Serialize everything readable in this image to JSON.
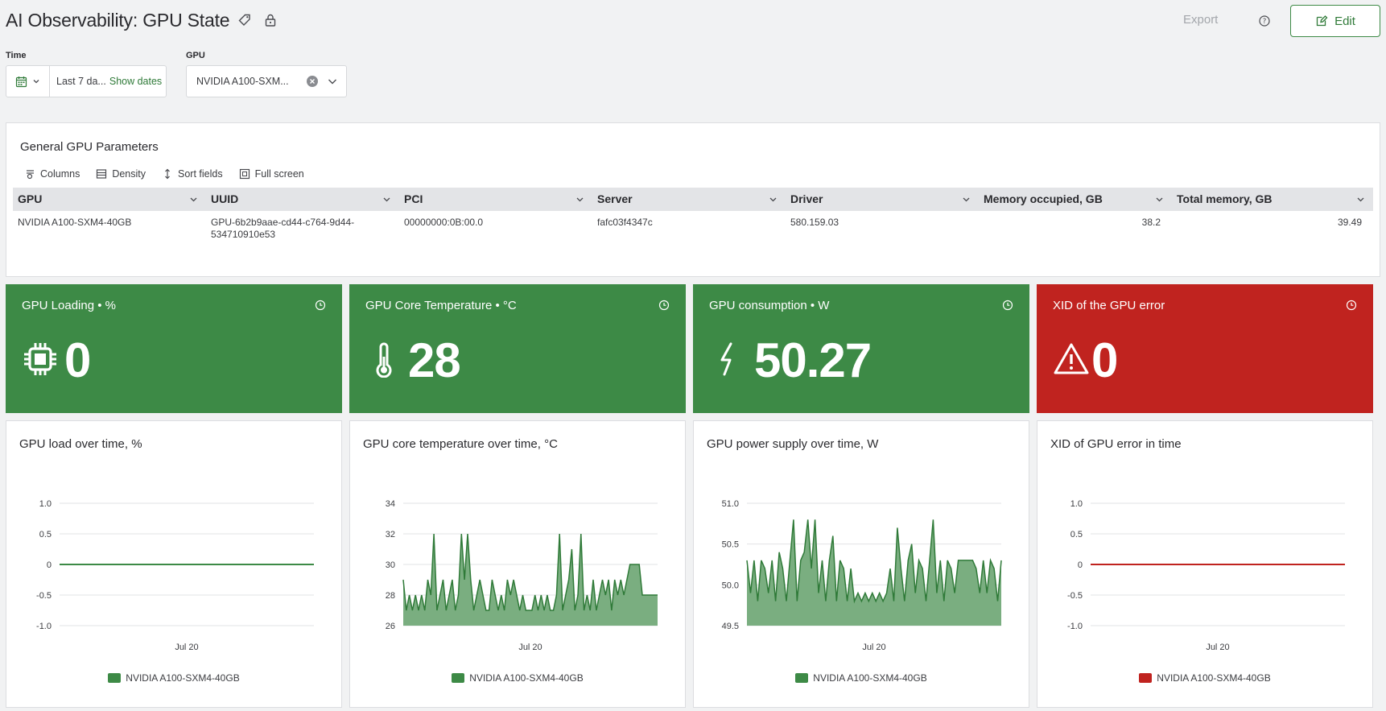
{
  "header": {
    "title": "AI Observability: GPU State",
    "export_label": "Export",
    "edit_label": "Edit"
  },
  "filters": {
    "time_label": "Time",
    "time_value": "Last 7 da...",
    "show_dates": "Show dates",
    "gpu_label": "GPU",
    "gpu_value": "NVIDIA A100-SXM..."
  },
  "table": {
    "title": "General GPU Parameters",
    "toolbar": [
      "Columns",
      "Density",
      "Sort fields",
      "Full screen"
    ],
    "columns": [
      "GPU",
      "UUID",
      "PCI",
      "Server",
      "Driver",
      "Memory occupied, GB",
      "Total memory, GB"
    ],
    "rows": [
      [
        "NVIDIA A100-SXM4-40GB",
        "GPU-6b2b9aae-cd44-c764-9d44-534710910e53",
        "00000000:0B:00.0",
        "fafc03f4347c",
        "580.159.03",
        "38.2",
        "39.49"
      ]
    ]
  },
  "kpis": [
    {
      "title": "GPU Loading • %",
      "value": "0",
      "icon": "chip-icon",
      "status": "ok"
    },
    {
      "title": "GPU Core Temperature • °C",
      "value": "28",
      "icon": "thermometer-icon",
      "status": "ok"
    },
    {
      "title": "GPU consumption • W",
      "value": "50.27",
      "icon": "lightning-icon",
      "status": "ok"
    },
    {
      "title": "XID of the GPU error",
      "value": "0",
      "icon": "warning-icon",
      "status": "error"
    }
  ],
  "colors": {
    "green": "#3d8a46",
    "red": "#c0231f",
    "area_fill": "#7aae80",
    "line_green": "#2f7a38"
  },
  "chart_data": [
    {
      "type": "line",
      "title": "GPU load over time, %",
      "yticks": [
        "1.0",
        "0.5",
        "0",
        "-0.5",
        "-1.0"
      ],
      "ylim": [
        -1,
        1
      ],
      "xtick": "Jul 20",
      "series": [
        {
          "name": "NVIDIA A100-SXM4-40GB",
          "color": "#3d8a46",
          "values": [
            0,
            0,
            0,
            0,
            0,
            0,
            0,
            0,
            0,
            0,
            0,
            0,
            0,
            0,
            0,
            0,
            0,
            0,
            0,
            0
          ]
        }
      ]
    },
    {
      "type": "area",
      "title": "GPU core temperature over time, °C",
      "yticks": [
        "34",
        "32",
        "30",
        "28",
        "26"
      ],
      "ylim": [
        26,
        34
      ],
      "xtick": "Jul 20",
      "series": [
        {
          "name": "NVIDIA A100-SXM4-40GB",
          "color": "#3d8a46",
          "values": [
            29,
            27,
            28,
            27,
            28,
            27,
            28,
            27,
            29,
            28,
            32,
            27,
            28,
            29,
            27,
            28,
            29,
            27,
            28,
            32,
            29,
            32,
            29,
            27,
            28,
            29,
            28,
            27,
            27,
            29,
            28,
            27,
            28,
            27,
            29,
            28,
            29,
            28,
            27,
            28,
            27,
            27,
            27,
            28,
            27,
            28,
            27,
            28,
            27,
            27,
            28,
            32,
            27,
            28,
            29,
            31,
            27,
            28,
            32,
            27,
            28,
            27,
            29,
            27,
            28,
            29,
            28,
            29,
            27,
            29,
            28,
            29,
            28,
            29,
            30,
            30,
            30,
            30,
            28,
            28,
            28,
            28,
            28,
            28
          ]
        }
      ]
    },
    {
      "type": "area",
      "title": "GPU power supply over time, W",
      "yticks": [
        "51.0",
        "50.5",
        "50.0",
        "49.5"
      ],
      "ylim": [
        49.5,
        51.0
      ],
      "xtick": "Jul 20",
      "series": [
        {
          "name": "NVIDIA A100-SXM4-40GB",
          "color": "#3d8a46",
          "values": [
            50.3,
            49.9,
            50.3,
            49.8,
            50.3,
            50.2,
            49.9,
            50.3,
            49.8,
            50.4,
            50.2,
            49.8,
            50.3,
            50.8,
            49.8,
            50.3,
            50.4,
            50.8,
            50.2,
            50.8,
            49.9,
            50.3,
            49.8,
            50.3,
            50.6,
            49.8,
            50.3,
            50.2,
            49.8,
            50.2,
            49.8,
            49.9,
            49.8,
            49.9,
            49.8,
            49.9,
            49.8,
            49.9,
            49.8,
            49.9,
            50.2,
            49.8,
            50.7,
            50.2,
            49.8,
            50.3,
            50.5,
            49.9,
            50.3,
            50.2,
            49.8,
            50.3,
            50.8,
            49.9,
            50.3,
            49.8,
            50.3,
            50.2,
            49.9,
            50.3,
            50.3,
            50.3,
            50.3,
            50.3,
            50.2,
            49.9,
            50.3,
            49.9,
            50.3,
            50.2,
            49.8,
            50.3
          ]
        }
      ]
    },
    {
      "type": "line",
      "title": "XID of GPU error in time",
      "yticks": [
        "1.0",
        "0.5",
        "0",
        "-0.5",
        "-1.0"
      ],
      "ylim": [
        -1,
        1
      ],
      "xtick": "Jul 20",
      "series": [
        {
          "name": "NVIDIA A100-SXM4-40GB",
          "color": "#c0231f",
          "values": [
            0,
            0,
            0,
            0,
            0,
            0,
            0,
            0,
            0,
            0,
            0,
            0,
            0,
            0,
            0,
            0,
            0,
            0,
            0,
            0
          ]
        }
      ]
    }
  ]
}
